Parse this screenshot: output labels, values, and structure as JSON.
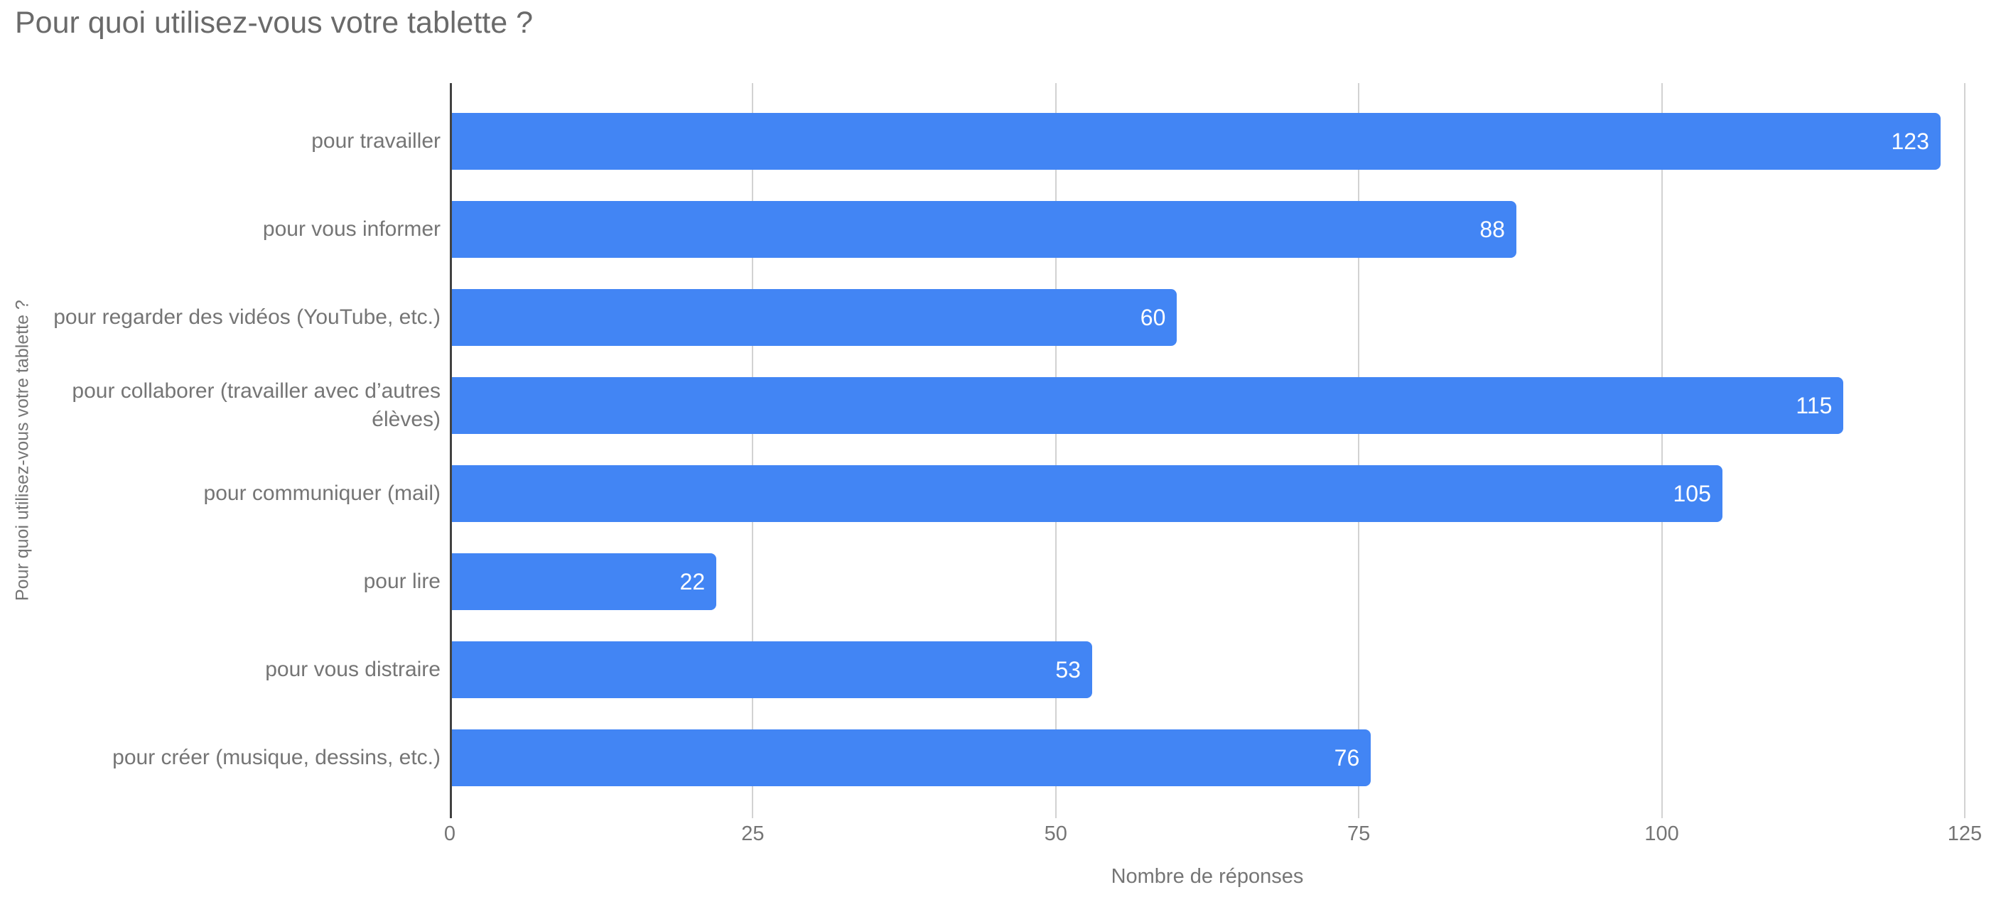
{
  "chart_data": {
    "type": "bar",
    "orientation": "horizontal",
    "title": "Pour quoi utilisez-vous votre tablette ?",
    "xlabel": "Nombre de réponses",
    "ylabel": "Pour quoi utilisez-vous votre tablette ?",
    "categories": [
      "pour travailler",
      "pour vous informer",
      "pour regarder des vidéos (YouTube, etc.)",
      "pour collaborer (travailler avec d’autres élèves)",
      "pour communiquer (mail)",
      "pour lire",
      "pour vous distraire",
      "pour créer (musique, dessins, etc.)"
    ],
    "values": [
      123,
      88,
      60,
      115,
      105,
      22,
      53,
      76
    ],
    "xlim": [
      0,
      125
    ],
    "x_ticks": [
      0,
      25,
      50,
      75,
      100,
      125
    ],
    "grid": true,
    "legend": "none",
    "bar_color": "#4285f4",
    "value_label_color": "#ffffff",
    "gridline_color": "#d2d2d2",
    "axis_line_color": "#424242",
    "text_color": "#757575",
    "title_color": "#6a6a6a"
  }
}
